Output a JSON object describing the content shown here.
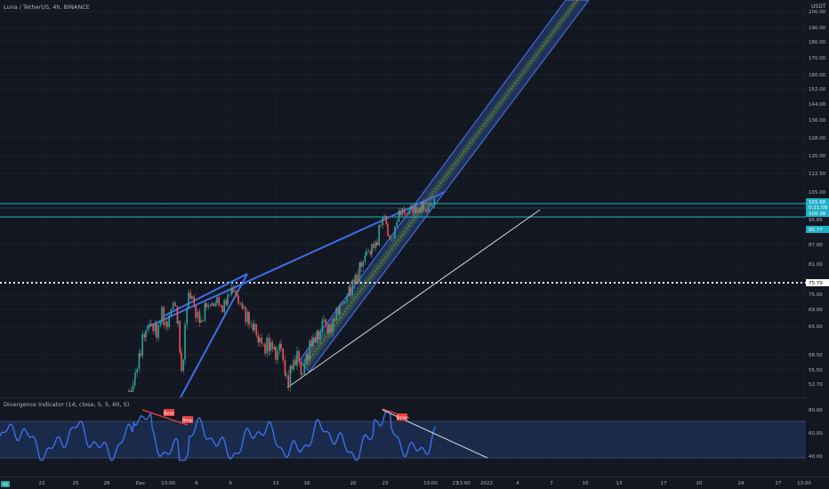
{
  "symbol_title": "Luna / TetherUS, 4h, BINANCE",
  "currency": "USDT",
  "price_ticks": [
    "200.00",
    "190.00",
    "180.00",
    "170.00",
    "160.00",
    "152.00",
    "144.00",
    "136.00",
    "128.00",
    "120.00",
    "112.50",
    "105.00",
    "87.00",
    "81.00",
    "75.00",
    "69.00",
    "65.00",
    "58.50",
    "55.50",
    "52.70"
  ],
  "price_tags": [
    {
      "label": "101.68",
      "kind": "box"
    },
    {
      "label": "0:21:08",
      "kind": "box"
    },
    {
      "label": "100.38",
      "kind": "box"
    },
    {
      "label": "95.85",
      "kind": "plain"
    },
    {
      "label": "95.77",
      "kind": "box"
    },
    {
      "label": "75.79",
      "kind": "white"
    }
  ],
  "indicator": {
    "title": "Divergence Indicator (14, close, 5, 5, 60, 5)",
    "ticks": [
      "80.00",
      "60.00",
      "40.00"
    ],
    "markers": [
      "Bear",
      "Bear",
      "Bear"
    ]
  },
  "time_ticks": [
    "22",
    "25",
    "28",
    "Dec",
    "13:00",
    "6",
    "9",
    "13",
    "16",
    "20",
    "23",
    "13:00",
    "27",
    "13:00",
    "2022",
    "4",
    "7",
    "10",
    "13",
    "17",
    "20",
    "24",
    "27",
    "13:00"
  ],
  "corner_badge": "TV",
  "chart_data": {
    "type": "candlestick",
    "title": "Luna / TetherUS, 4h, BINANCE",
    "ylabel": "USDT",
    "ylim": [
      51,
      200
    ],
    "close_approx": [
      {
        "date": "2021-11-29",
        "price": 53
      },
      {
        "date": "2021-11-30",
        "price": 62
      },
      {
        "date": "2021-12-01",
        "price": 66
      },
      {
        "date": "2021-12-02",
        "price": 66
      },
      {
        "date": "2021-12-03",
        "price": 77
      },
      {
        "date": "2021-12-04",
        "price": 58
      },
      {
        "date": "2021-12-05",
        "price": 68
      },
      {
        "date": "2021-12-06",
        "price": 74
      },
      {
        "date": "2021-12-07",
        "price": 68
      },
      {
        "date": "2021-12-08",
        "price": 72
      },
      {
        "date": "2021-12-09",
        "price": 77
      },
      {
        "date": "2021-12-10",
        "price": 68
      },
      {
        "date": "2021-12-11",
        "price": 65
      },
      {
        "date": "2021-12-12",
        "price": 60
      },
      {
        "date": "2021-12-13",
        "price": 61
      },
      {
        "date": "2021-12-14",
        "price": 53
      },
      {
        "date": "2021-12-15",
        "price": 56
      },
      {
        "date": "2021-12-16",
        "price": 64
      },
      {
        "date": "2021-12-17",
        "price": 66
      },
      {
        "date": "2021-12-18",
        "price": 70
      },
      {
        "date": "2021-12-19",
        "price": 78
      },
      {
        "date": "2021-12-20",
        "price": 82
      },
      {
        "date": "2021-12-21",
        "price": 88
      },
      {
        "date": "2021-12-22",
        "price": 96
      },
      {
        "date": "2021-12-23",
        "price": 90
      },
      {
        "date": "2021-12-24",
        "price": 100
      },
      {
        "date": "2021-12-25",
        "price": 97
      },
      {
        "date": "2021-12-26",
        "price": 99
      },
      {
        "date": "2021-12-27",
        "price": 101
      }
    ],
    "horizontal_levels": [
      101.68,
      100.38,
      95.77,
      75.79
    ],
    "indicator_series": {
      "name": "Divergence Indicator (14, close, 5, 5, 60, 5)",
      "ylim": [
        32,
        86
      ],
      "band": [
        40,
        70
      ]
    }
  }
}
